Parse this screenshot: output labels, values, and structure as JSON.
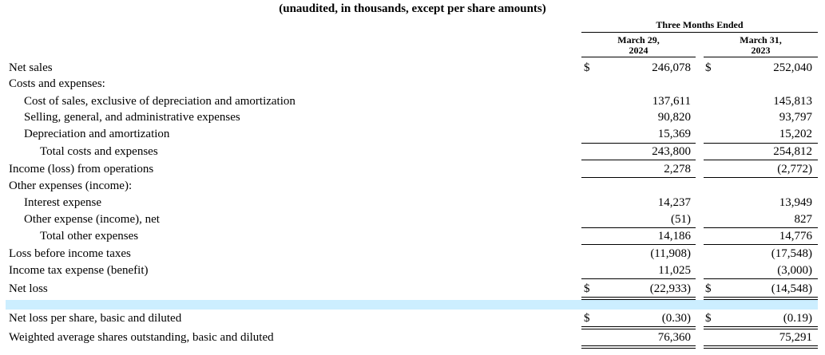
{
  "title": "(unaudited, in thousands, except per share amounts)",
  "header": {
    "group": "Three Months Ended",
    "col1": {
      "line1": "March 29,",
      "line2": "2024"
    },
    "col2": {
      "line1": "March 31,",
      "line2": "2023"
    }
  },
  "currency_symbol": "$",
  "rows": [
    {
      "label": "Net sales",
      "v1": "246,078",
      "v2": "252,040"
    },
    {
      "label": "Costs and expenses:",
      "v1": "",
      "v2": ""
    },
    {
      "label": "Cost of sales, exclusive of depreciation and amortization",
      "v1": "137,611",
      "v2": "145,813"
    },
    {
      "label": "Selling, general, and administrative expenses",
      "v1": "90,820",
      "v2": "93,797"
    },
    {
      "label": "Depreciation and amortization",
      "v1": "15,369",
      "v2": "15,202"
    },
    {
      "label": "Total costs and expenses",
      "v1": "243,800",
      "v2": "254,812"
    },
    {
      "label": "Income (loss) from operations",
      "v1": "2,278",
      "v2": "(2,772)"
    },
    {
      "label": "Other expenses (income):",
      "v1": "",
      "v2": ""
    },
    {
      "label": "Interest expense",
      "v1": "14,237",
      "v2": "13,949"
    },
    {
      "label": "Other expense (income), net",
      "v1": "(51)",
      "v2": "827"
    },
    {
      "label": "Total other expenses",
      "v1": "14,186",
      "v2": "14,776"
    },
    {
      "label": "Loss before income taxes",
      "v1": "(11,908)",
      "v2": "(17,548)"
    },
    {
      "label": "Income tax expense (benefit)",
      "v1": "11,025",
      "v2": "(3,000)"
    },
    {
      "label": "Net loss",
      "v1": "(22,933)",
      "v2": "(14,548)"
    },
    {
      "label": "",
      "v1": "",
      "v2": ""
    },
    {
      "label": "Net loss per share, basic and diluted",
      "v1": "(0.30)",
      "v2": "(0.19)"
    },
    {
      "label": "Weighted average shares outstanding, basic and diluted",
      "v1": "76,360",
      "v2": "75,291"
    }
  ]
}
